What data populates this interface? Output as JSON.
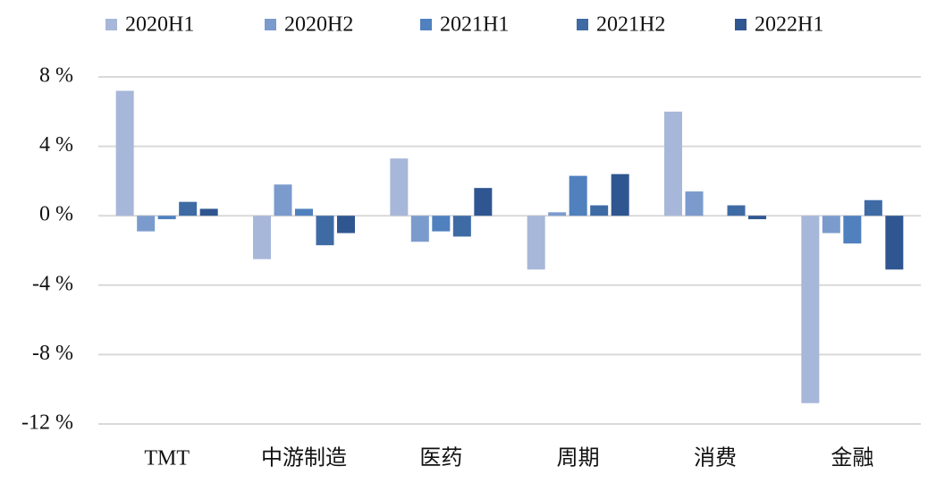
{
  "chart_data": {
    "type": "bar",
    "categories": [
      "TMT",
      "中游制造",
      "医药",
      "周期",
      "消费",
      "金融"
    ],
    "series": [
      {
        "name": "2020H1",
        "color": "#a7b7d9",
        "values": [
          7.2,
          -2.5,
          3.3,
          -3.1,
          6.0,
          -10.8
        ]
      },
      {
        "name": "2020H2",
        "color": "#7c9bcd",
        "values": [
          -0.9,
          1.8,
          -1.5,
          0.2,
          1.4,
          -1.0
        ]
      },
      {
        "name": "2021H1",
        "color": "#5080be",
        "values": [
          -0.2,
          0.4,
          -0.9,
          2.3,
          0,
          -1.6
        ]
      },
      {
        "name": "2021H2",
        "color": "#3f6ba5",
        "values": [
          0.8,
          -1.7,
          -1.2,
          0.6,
          0.6,
          0.9
        ]
      },
      {
        "name": "2022H1",
        "color": "#2f5690",
        "values": [
          0.4,
          -1.0,
          1.6,
          2.4,
          -0.2,
          -3.1
        ]
      }
    ],
    "ylim": [
      -12,
      8
    ],
    "yticks": [
      {
        "value": -12,
        "label": "-12 %"
      },
      {
        "value": -8,
        "label": "-8 %"
      },
      {
        "value": -4,
        "label": "-4 %"
      },
      {
        "value": 0,
        "label": "0 %"
      },
      {
        "value": 4,
        "label": "4 %"
      },
      {
        "value": 8,
        "label": "8 %"
      }
    ],
    "grid": true,
    "legend": "top"
  }
}
